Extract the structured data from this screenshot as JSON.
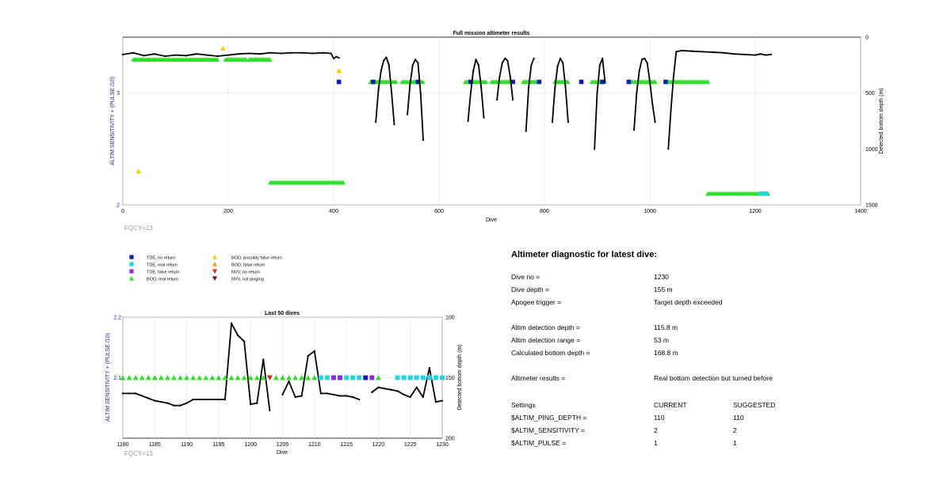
{
  "colors": {
    "line": "#000000",
    "tde_no_return": "#0b1fb8",
    "tde_real_return": "#1fd6e6",
    "tde_false_return": "#8a2be2",
    "bod_real_return": "#2fe02f",
    "bod_possibly_false": "#f2cf00",
    "bod_false_return": "#f0a010",
    "nvv_no_return": "#d03010",
    "nvv_not_pinging": "#7a1010",
    "left_axis_label": "#2020b0",
    "fqcy": "#999999"
  },
  "chart_data": [
    {
      "type": "scatter",
      "title": "Full mission altimeter results",
      "xlabel": "Dive",
      "ylabel_left": "ALTIM SENSITIVITY + (PULSE /10)",
      "ylabel_right": "Detected bottom depth (m)",
      "xlim": [
        0,
        1400
      ],
      "ylim_left": [
        2,
        3.5
      ],
      "ylim_right_reversed": [
        1500,
        0
      ],
      "x_ticks": [
        "0",
        "200",
        "400",
        "600",
        "800",
        "1000",
        "1200",
        "1400"
      ],
      "y_ticks_left": [
        "2",
        "3"
      ],
      "y_ticks_right": [
        "0",
        "500",
        "1000",
        "1500"
      ],
      "footnote": "FQCY=13",
      "grid": true,
      "series": [
        {
          "name": "Detected bottom depth",
          "axis": "right",
          "x": [
            0,
            20,
            40,
            60,
            80,
            100,
            120,
            140,
            160,
            180,
            200,
            220,
            240,
            260,
            280,
            300,
            320,
            340,
            360,
            380,
            395,
            400,
            405,
            410
          ],
          "y": [
            155,
            140,
            165,
            150,
            170,
            160,
            165,
            150,
            160,
            170,
            160,
            150,
            145,
            150,
            140,
            145,
            140,
            140,
            145,
            140,
            145,
            190,
            175,
            185
          ]
        },
        {
          "name": "Detected bottom depth",
          "axis": "right",
          "x": [
            480,
            485,
            490,
            495,
            500,
            505,
            510,
            515
          ],
          "y": [
            760,
            470,
            300,
            210,
            180,
            250,
            500,
            780
          ]
        },
        {
          "name": "Detected bottom depth",
          "axis": "right",
          "x": [
            540,
            545,
            550,
            555,
            560,
            565,
            570
          ],
          "y": [
            690,
            420,
            250,
            200,
            230,
            500,
            920
          ]
        },
        {
          "name": "Detected bottom depth",
          "axis": "right",
          "x": [
            655,
            660,
            665,
            670,
            675,
            680,
            685
          ],
          "y": [
            750,
            500,
            300,
            200,
            250,
            450,
            720
          ]
        },
        {
          "name": "Detected bottom depth",
          "axis": "right",
          "x": [
            710,
            715,
            720,
            725,
            730,
            735,
            740
          ],
          "y": [
            560,
            350,
            230,
            190,
            210,
            350,
            560
          ]
        },
        {
          "name": "Detected bottom depth",
          "axis": "right",
          "x": [
            765,
            770,
            775,
            780
          ],
          "y": [
            840,
            450,
            250,
            190
          ]
        },
        {
          "name": "Detected bottom depth",
          "axis": "right",
          "x": [
            815,
            820,
            825,
            830,
            835,
            840,
            845
          ],
          "y": [
            760,
            450,
            260,
            190,
            230,
            450,
            760
          ]
        },
        {
          "name": "Detected bottom depth",
          "axis": "right",
          "x": [
            895,
            900,
            905,
            910,
            915
          ],
          "y": [
            1000,
            500,
            250,
            190,
            400
          ]
        },
        {
          "name": "Detected bottom depth",
          "axis": "right",
          "x": [
            970,
            975,
            980,
            985,
            990,
            995,
            1000,
            1005,
            1010
          ],
          "y": [
            830,
            500,
            300,
            200,
            190,
            230,
            400,
            600,
            760
          ]
        },
        {
          "name": "Detected bottom depth",
          "axis": "right",
          "x": [
            1035,
            1040,
            1045,
            1050,
            1060,
            1080,
            1100,
            1120,
            1140,
            1160,
            1180,
            1200,
            1210,
            1220,
            1230
          ],
          "y": [
            1000,
            650,
            350,
            130,
            120,
            125,
            130,
            135,
            140,
            150,
            155,
            160,
            150,
            160,
            155
          ]
        }
      ],
      "markers": [
        {
          "category": "bod_real_return",
          "ranges": [
            [
              20,
              180
            ],
            [
              195,
              235
            ],
            [
              240,
              280
            ],
            [
              280,
              420
            ],
            [
              470,
              520
            ],
            [
              530,
              570
            ],
            [
              650,
              690
            ],
            [
              700,
              735
            ],
            [
              760,
              785
            ],
            [
              820,
              845
            ],
            [
              890,
              915
            ],
            [
              965,
              1010
            ],
            [
              1035,
              1110
            ],
            [
              1110,
              1225
            ]
          ],
          "y": [
            3.3,
            3.3,
            3.3,
            2.2,
            3.1,
            3.1,
            3.1,
            3.1,
            3.1,
            3.1,
            3.1,
            3.1,
            3.1,
            2.1
          ]
        },
        {
          "category": "bod_possibly_false",
          "points": [
            [
              190,
              3.4
            ],
            [
              30,
              2.3
            ],
            [
              410,
              3.2
            ]
          ]
        },
        {
          "category": "tde_no_return",
          "points": [
            [
              410,
              3.1
            ],
            [
              475,
              3.1
            ],
            [
              560,
              3.1
            ],
            [
              660,
              3.1
            ],
            [
              740,
              3.1
            ],
            [
              790,
              3.1
            ],
            [
              870,
              3.1
            ],
            [
              910,
              3.1
            ],
            [
              960,
              3.1
            ],
            [
              1030,
              3.1
            ]
          ]
        },
        {
          "category": "tde_real_return",
          "points": [
            [
              1210,
              2.1
            ],
            [
              1220,
              2.1
            ]
          ]
        }
      ]
    },
    {
      "type": "scatter",
      "title": "Last 50 dives",
      "xlabel": "Dive",
      "ylabel_left": "ALTIM SENSITIVITY + (PULSE /10)",
      "ylabel_right": "Detected bottom depth (m)",
      "xlim": [
        1180,
        1230
      ],
      "ylim_left": [
        2.0,
        2.2
      ],
      "ylim_right_reversed": [
        200,
        100
      ],
      "x_ticks": [
        "1180",
        "1185",
        "1190",
        "1195",
        "1200",
        "1205",
        "1210",
        "1215",
        "1220",
        "1225",
        "1230"
      ],
      "y_ticks_left": [
        "2.1",
        "2.2"
      ],
      "y_ticks_right": [
        "100",
        "150",
        "200"
      ],
      "footnote": "FQCY=13",
      "grid": true,
      "segments": [
        {
          "x": [
            1180,
            1181,
            1182,
            1183,
            1184,
            1185,
            1186,
            1187,
            1188,
            1189,
            1190,
            1191,
            1192,
            1193,
            1194,
            1195,
            1196,
            1197,
            1198,
            1199,
            1200,
            1201,
            1202,
            1203
          ],
          "y": [
            163,
            163,
            163,
            165,
            167,
            169,
            170,
            171,
            173,
            173,
            171,
            168,
            168,
            168,
            168,
            168,
            168,
            105,
            115,
            120,
            172,
            171,
            135,
            177
          ]
        },
        {
          "x": [
            1205,
            1206,
            1207,
            1208,
            1209,
            1210,
            1211,
            1212,
            1213,
            1214,
            1215,
            1216,
            1217
          ],
          "y": [
            164,
            153,
            166,
            165,
            132,
            128,
            163,
            163,
            164,
            165,
            165,
            166,
            168
          ]
        },
        {
          "x": [
            1219,
            1220,
            1221,
            1222,
            1223,
            1224,
            1225,
            1226,
            1227,
            1228,
            1229,
            1230
          ],
          "y": [
            162,
            158,
            159,
            160,
            161,
            164,
            166,
            158,
            166,
            142,
            170,
            169
          ]
        }
      ],
      "markers": [
        {
          "dive": 1180,
          "category": "bod_real_return"
        },
        {
          "dive": 1181,
          "category": "bod_real_return"
        },
        {
          "dive": 1182,
          "category": "bod_real_return"
        },
        {
          "dive": 1183,
          "category": "bod_real_return"
        },
        {
          "dive": 1184,
          "category": "bod_real_return"
        },
        {
          "dive": 1185,
          "category": "bod_real_return"
        },
        {
          "dive": 1186,
          "category": "bod_real_return"
        },
        {
          "dive": 1187,
          "category": "bod_real_return"
        },
        {
          "dive": 1188,
          "category": "bod_real_return"
        },
        {
          "dive": 1189,
          "category": "bod_real_return"
        },
        {
          "dive": 1190,
          "category": "bod_real_return"
        },
        {
          "dive": 1191,
          "category": "bod_real_return"
        },
        {
          "dive": 1192,
          "category": "bod_real_return"
        },
        {
          "dive": 1193,
          "category": "bod_real_return"
        },
        {
          "dive": 1194,
          "category": "bod_real_return"
        },
        {
          "dive": 1195,
          "category": "bod_real_return"
        },
        {
          "dive": 1196,
          "category": "bod_real_return"
        },
        {
          "dive": 1197,
          "category": "bod_real_return"
        },
        {
          "dive": 1198,
          "category": "bod_real_return"
        },
        {
          "dive": 1199,
          "category": "bod_real_return"
        },
        {
          "dive": 1200,
          "category": "bod_real_return"
        },
        {
          "dive": 1201,
          "category": "bod_real_return"
        },
        {
          "dive": 1202,
          "category": "bod_real_return"
        },
        {
          "dive": 1203,
          "category": "nvv_no_return"
        },
        {
          "dive": 1204,
          "category": "bod_real_return"
        },
        {
          "dive": 1205,
          "category": "bod_real_return"
        },
        {
          "dive": 1206,
          "category": "bod_real_return"
        },
        {
          "dive": 1207,
          "category": "bod_real_return"
        },
        {
          "dive": 1208,
          "category": "bod_real_return"
        },
        {
          "dive": 1209,
          "category": "bod_real_return"
        },
        {
          "dive": 1210,
          "category": "bod_real_return"
        },
        {
          "dive": 1211,
          "category": "tde_real_return"
        },
        {
          "dive": 1212,
          "category": "tde_real_return"
        },
        {
          "dive": 1213,
          "category": "tde_false_return"
        },
        {
          "dive": 1214,
          "category": "tde_false_return"
        },
        {
          "dive": 1215,
          "category": "tde_real_return"
        },
        {
          "dive": 1216,
          "category": "tde_real_return"
        },
        {
          "dive": 1217,
          "category": "tde_real_return"
        },
        {
          "dive": 1218,
          "category": "tde_no_return"
        },
        {
          "dive": 1219,
          "category": "tde_false_return"
        },
        {
          "dive": 1220,
          "category": "bod_real_return"
        },
        {
          "dive": 1223,
          "category": "tde_real_return"
        },
        {
          "dive": 1224,
          "category": "tde_real_return"
        },
        {
          "dive": 1225,
          "category": "tde_real_return"
        },
        {
          "dive": 1226,
          "category": "tde_real_return"
        },
        {
          "dive": 1227,
          "category": "tde_real_return"
        },
        {
          "dive": 1228,
          "category": "tde_real_return"
        },
        {
          "dive": 1229,
          "category": "tde_real_return"
        },
        {
          "dive": 1230,
          "category": "tde_real_return"
        }
      ]
    }
  ],
  "legend": {
    "col1": [
      {
        "label": "TDE, no return",
        "category": "tde_no_return",
        "shape": "square"
      },
      {
        "label": "TDE, real return",
        "category": "tde_real_return",
        "shape": "square"
      },
      {
        "label": "TDE, false return",
        "category": "tde_false_return",
        "shape": "square"
      },
      {
        "label": "BOD, real return",
        "category": "bod_real_return",
        "shape": "triangle-up"
      }
    ],
    "col2": [
      {
        "label": "BOD, possibly false return",
        "category": "bod_possibly_false",
        "shape": "triangle-up"
      },
      {
        "label": "BOD, false return",
        "category": "bod_false_return",
        "shape": "triangle-up"
      },
      {
        "label": "NVV, no return",
        "category": "nvv_no_return",
        "shape": "triangle-down"
      },
      {
        "label": "NVV, not pinging",
        "category": "nvv_not_pinging",
        "shape": "triangle-down"
      }
    ]
  },
  "diagnostic": {
    "title": "Altimeter diagnostic for latest dive:",
    "rows": [
      {
        "label": "Dive no =",
        "value": "1230"
      },
      {
        "label": "Dive depth =",
        "value": "155 m"
      },
      {
        "label": "Apogee trigger =",
        "value": "Target depth exceeded"
      },
      {
        "label": "Altim detection depth =",
        "value": "115.8 m"
      },
      {
        "label": "Altim detection range =",
        "value": "53 m"
      },
      {
        "label": "Calculated bottom depth =",
        "value": "168.8 m"
      },
      {
        "label": "Altimeter results =",
        "value": "Real bottom detection but turned before"
      }
    ],
    "settings_header": {
      "label": "Settings",
      "current": "CURRENT",
      "suggested": "SUGGESTED"
    },
    "settings": [
      {
        "label": "$ALTIM_PING_DEPTH =",
        "current": "110",
        "suggested": "110"
      },
      {
        "label": "$ALTIM_SENSITIVITY =",
        "current": "2",
        "suggested": "2"
      },
      {
        "label": "$ALTIM_PULSE =",
        "current": "1",
        "suggested": "1"
      }
    ]
  }
}
